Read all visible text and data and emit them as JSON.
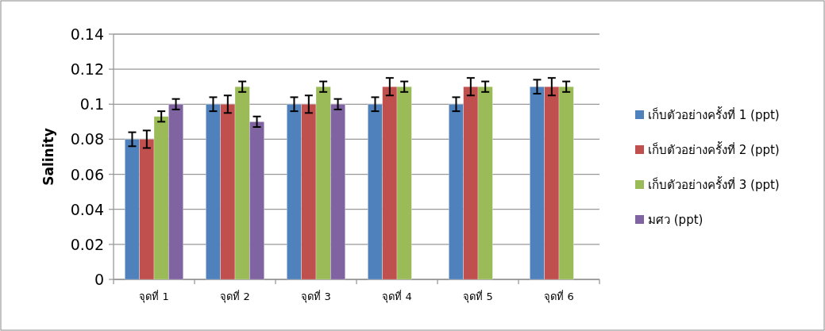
{
  "chart_data": {
    "type": "bar",
    "ylabel": "Salinity",
    "categories": [
      "จุดที่ 1",
      "จุดที่ 2",
      "จุดที่ 3",
      "จุดที่ 4",
      "จุดที่ 5",
      "จุดที่ 6"
    ],
    "series": [
      {
        "name": "เก็บตัวอย่างครั้งที่ 1 (ppt)",
        "color": "#4f81bd",
        "values": [
          0.08,
          0.1,
          0.1,
          0.1,
          0.1,
          0.11
        ],
        "errors": [
          0.004,
          0.004,
          0.004,
          0.004,
          0.004,
          0.004
        ]
      },
      {
        "name": "เก็บตัวอย่างครั้งที่ 2 (ppt)",
        "color": "#c0504d",
        "values": [
          0.08,
          0.1,
          0.1,
          0.11,
          0.11,
          0.11
        ],
        "errors": [
          0.005,
          0.005,
          0.005,
          0.005,
          0.005,
          0.005
        ]
      },
      {
        "name": "เก็บตัวอย่างครั้งที่ 3 (ppt)",
        "color": "#9bbb59",
        "values": [
          0.093,
          0.11,
          0.11,
          0.11,
          0.11,
          0.11
        ],
        "errors": [
          0.003,
          0.003,
          0.003,
          0.003,
          0.003,
          0.003
        ]
      },
      {
        "name": "มศว (ppt)",
        "color": "#8064a2",
        "values": [
          0.1,
          0.09,
          0.1,
          null,
          null,
          null
        ],
        "errors": [
          0.003,
          0.003,
          0.003,
          null,
          null,
          null
        ]
      }
    ],
    "ylim": [
      0,
      0.14
    ],
    "yticks": [
      0,
      0.02,
      0.04,
      0.06,
      0.08,
      0.1,
      0.12,
      0.14
    ],
    "grid": "y",
    "legend": "right"
  }
}
